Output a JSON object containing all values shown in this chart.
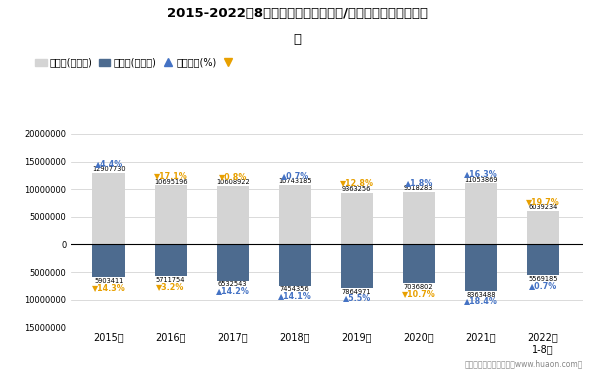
{
  "title_line1": "2015-2022年8月广州市（境内目的地/货源地）进、出口额统",
  "title_line2": "计",
  "years": [
    "2015年",
    "2016年",
    "2017年",
    "2018年",
    "2019年",
    "2020年",
    "2021年",
    "2022年\n1-8月"
  ],
  "export_values": [
    12907730,
    10695196,
    10608922,
    10743185,
    9363256,
    9518283,
    11053869,
    6039234
  ],
  "import_values": [
    5903411,
    5711754,
    6532543,
    7454356,
    7864971,
    7036802,
    8363488,
    5569185
  ],
  "export_yoy": [
    4.4,
    -17.1,
    -0.8,
    0.7,
    -12.8,
    1.8,
    16.3,
    -19.7
  ],
  "import_yoy": [
    -14.3,
    -3.2,
    14.2,
    14.1,
    5.5,
    -10.7,
    18.4,
    0.7
  ],
  "export_bar_color": "#d4d4d4",
  "import_bar_color": "#4d6b8f",
  "up_color": "#4472c4",
  "down_color": "#e8a000",
  "ylim_max": 20000000,
  "ylim_min": -15000000,
  "bar_width": 0.52,
  "yticks": [
    -15000000,
    -10000000,
    -5000000,
    0,
    5000000,
    10000000,
    15000000,
    20000000
  ],
  "legend_export": "出口额(万美元)",
  "legend_import": "进口额(万美元)",
  "legend_yoy": "同比增长(%)",
  "footnote": "制图：华经产业研究院（www.huaon.com）",
  "up_tri": "▲",
  "down_tri": "▼"
}
